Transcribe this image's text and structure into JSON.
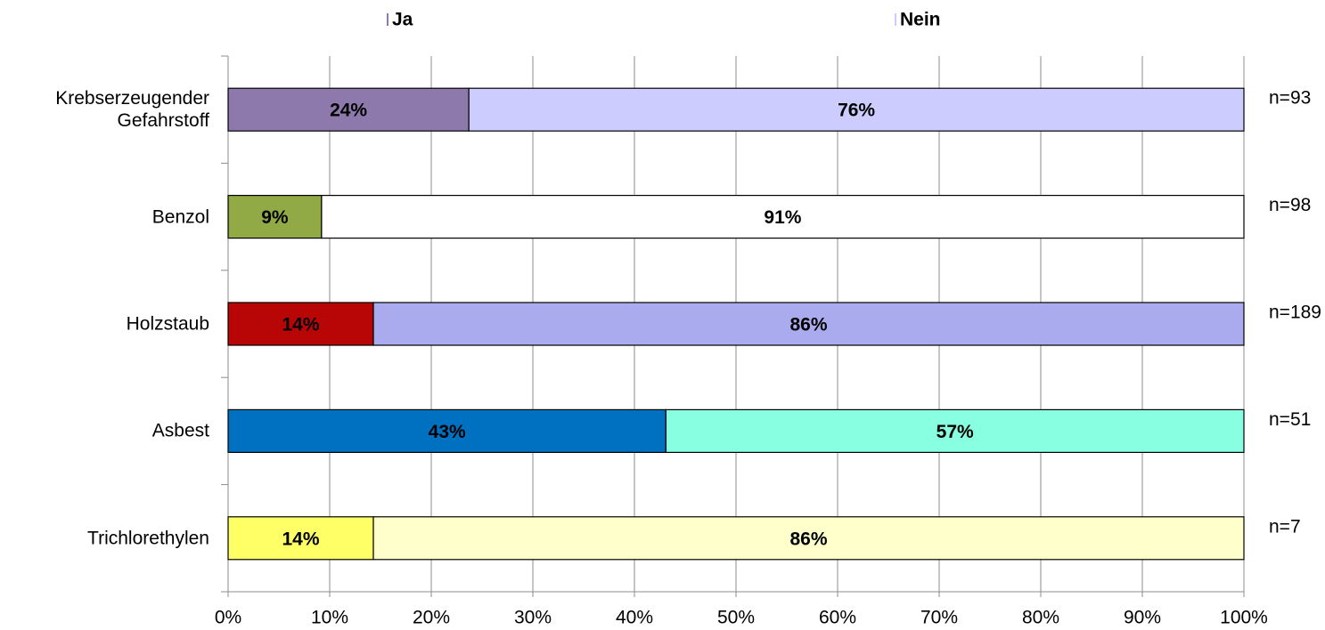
{
  "chart_data": {
    "type": "stacked-bar-horizontal",
    "categories": [
      "Krebserzeugender\nGefahrstoff",
      "Benzol",
      "Holzstaub",
      "Asbest",
      "Trichlorethylen"
    ],
    "series": [
      {
        "name": "Ja",
        "colors": [
          "#8e79ad",
          "#92aa45",
          "#b80606",
          "#0070c0",
          "#ffff66"
        ],
        "values": [
          23.7,
          9.2,
          14.3,
          43.1,
          14.3
        ],
        "value_labels": [
          "24%",
          "9%",
          "14%",
          "43%",
          "14%"
        ]
      },
      {
        "name": "Nein",
        "colors": [
          "#ccccff",
          "#ffffff",
          "#aaaaee",
          "#88ffe0",
          "#ffffcc"
        ],
        "values": [
          76.3,
          90.8,
          85.7,
          56.9,
          85.7
        ],
        "value_labels": [
          "76%",
          "91%",
          "86%",
          "57%",
          "86%"
        ]
      }
    ],
    "annotations": [
      "n=93",
      "n=98",
      "n=189",
      "n=51",
      "n=7"
    ],
    "xlim": [
      0,
      100
    ],
    "xticks": [
      {
        "value": 0,
        "label": "0%"
      },
      {
        "value": 10,
        "label": "10%"
      },
      {
        "value": 20,
        "label": "20%"
      },
      {
        "value": 30,
        "label": "30%"
      },
      {
        "value": 40,
        "label": "40%"
      },
      {
        "value": 50,
        "label": "50%"
      },
      {
        "value": 60,
        "label": "60%"
      },
      {
        "value": 70,
        "label": "70%"
      },
      {
        "value": 80,
        "label": "80%"
      },
      {
        "value": 90,
        "label": "90%"
      },
      {
        "value": 100,
        "label": "100%"
      }
    ],
    "grid": true
  }
}
